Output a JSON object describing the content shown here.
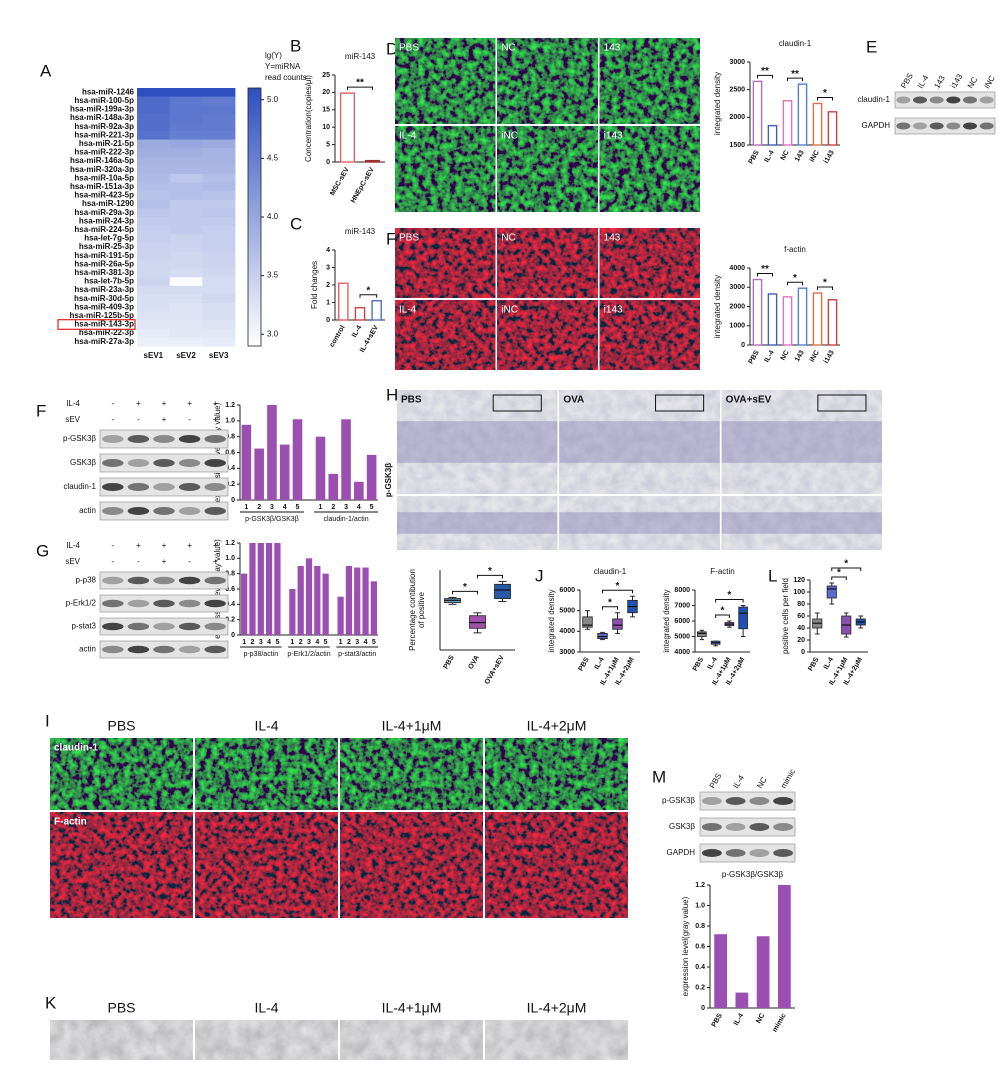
{
  "letters": [
    "A",
    "B",
    "C",
    "D",
    "E",
    "F",
    "F",
    "G",
    "H",
    "J",
    "L",
    "I",
    "M",
    "K"
  ],
  "chart_data": [
    {
      "type": "heatmap",
      "rows": [
        "hsa-miR-1246",
        "hsa-miR-100-5p",
        "hsa-miR-199a-3p",
        "hsa-miR-148a-3p",
        "hsa-miR-92a-3p",
        "hsa-miR-221-3p",
        "hsa-miR-21-5p",
        "hsa-miR-222-3p",
        "hsa-miR-146a-5p",
        "hsa-miR-320a-3p",
        "hsa-miR-10a-5p",
        "hsa-miR-151a-3p",
        "hsa-miR-423-5p",
        "hsa-miR-1290",
        "hsa-miR-29a-3p",
        "hsa-miR-24-3p",
        "hsa-miR-224-5p",
        "hsa-let-7g-5p",
        "hsa-miR-25-3p",
        "hsa-miR-191-5p",
        "hsa-miR-26a-5p",
        "hsa-miR-381-3p",
        "hsa-let-7b-5p",
        "hsa-miR-23a-3p",
        "hsa-miR-30d-5p",
        "hsa-miR-409-3p",
        "hsa-miR-125b-5p",
        "hsa-miR-143-3p",
        "hsa-miR-22-3p",
        "hsa-miR-27a-3p"
      ],
      "columns": [
        "sEV1",
        "sEV2",
        "sEV3"
      ],
      "values": [
        [
          5.1,
          5.1,
          5.1
        ],
        [
          4.75,
          4.6,
          4.55
        ],
        [
          4.75,
          4.6,
          4.6
        ],
        [
          4.7,
          4.6,
          4.55
        ],
        [
          4.7,
          4.55,
          4.55
        ],
        [
          4.65,
          4.5,
          4.5
        ],
        [
          3.95,
          4.0,
          3.95
        ],
        [
          3.9,
          3.9,
          3.85
        ],
        [
          3.85,
          3.85,
          3.85
        ],
        [
          3.8,
          3.8,
          3.8
        ],
        [
          3.75,
          3.6,
          3.7
        ],
        [
          3.7,
          3.7,
          3.75
        ],
        [
          3.65,
          3.7,
          3.65
        ],
        [
          3.7,
          3.55,
          3.55
        ],
        [
          3.6,
          3.55,
          3.6
        ],
        [
          3.55,
          3.55,
          3.55
        ],
        [
          3.5,
          3.55,
          3.5
        ],
        [
          3.5,
          3.45,
          3.5
        ],
        [
          3.45,
          3.45,
          3.5
        ],
        [
          3.45,
          3.4,
          3.45
        ],
        [
          3.4,
          3.4,
          3.45
        ],
        [
          3.4,
          3.35,
          3.4
        ],
        [
          3.45,
          2.95,
          3.35
        ],
        [
          3.35,
          3.35,
          3.35
        ],
        [
          3.3,
          3.3,
          3.4
        ],
        [
          3.3,
          3.25,
          3.3
        ],
        [
          3.25,
          3.25,
          3.3
        ],
        [
          3.2,
          3.2,
          3.25
        ],
        [
          3.15,
          3.2,
          3.2
        ],
        [
          3.1,
          3.1,
          3.15
        ]
      ],
      "zlim": [
        2.9,
        5.1
      ],
      "zticks": [
        {
          "value": 3,
          "label": "3.0"
        },
        3.5,
        {
          "value": 4,
          "label": "4.0"
        },
        4.5,
        {
          "value": 5,
          "label": "5.0"
        }
      ],
      "colormap": [
        "#ffffff",
        "#2e4fbf"
      ],
      "legend_title": [
        "lg(Y)",
        "Y=miRNA",
        "read counts"
      ],
      "highlight": "hsa-miR-143-3p",
      "highlight_color": "#e02020"
    },
    {
      "type": "bar",
      "title": "miR-143",
      "ylabel": "Concentration(copies/μl)",
      "categories": [
        "MSC-sEV",
        "HNEpC-sEV"
      ],
      "values": [
        19.8,
        0.4
      ],
      "colors": [
        "#e06060",
        "#a03030"
      ],
      "bar_style": "outline",
      "ylim": [
        0,
        25
      ],
      "yticks": [
        0,
        5,
        10,
        15,
        20,
        25
      ],
      "annotations": [
        {
          "text": "**",
          "between": [
            "MSC-sEV",
            "HNEpC-sEV"
          ]
        }
      ]
    },
    {
      "type": "bar",
      "title": "miR-143",
      "ylabel": "Fold changes",
      "categories": [
        "control",
        "IL-4",
        "IL-4+sEV"
      ],
      "values": [
        2.1,
        0.7,
        1.1
      ],
      "colors": [
        "#e06060",
        "#d04040",
        "#5070c0"
      ],
      "bar_style": "outline",
      "ylim": [
        0,
        4
      ],
      "yticks": [
        0,
        1,
        2,
        3,
        4
      ],
      "annotations": [
        {
          "text": "*",
          "between": [
            "IL-4",
            "IL-4+sEV"
          ]
        }
      ]
    },
    {
      "type": "bar",
      "title": "claudin-1",
      "ylabel": "integrated density",
      "categories": [
        "PBS",
        "IL-4",
        "NC",
        "143",
        "iNC",
        "i143"
      ],
      "values": [
        2650,
        1850,
        2300,
        2600,
        2250,
        2100
      ],
      "colors": [
        "#b070c0",
        "#4060c0",
        "#e070c0",
        "#5080d0",
        "#e07050",
        "#d04040"
      ],
      "bar_style": "outline",
      "ylim": [
        1500,
        3000
      ],
      "yticks": [
        1500,
        2000,
        2500,
        3000
      ],
      "annotations": [
        {
          "text": "**",
          "between": [
            "PBS",
            "IL-4"
          ]
        },
        {
          "text": "**",
          "between": [
            "NC",
            "143"
          ]
        },
        {
          "text": "*",
          "between": [
            "iNC",
            "i143"
          ]
        }
      ]
    },
    {
      "type": "bar",
      "title": "f-actin",
      "ylabel": "integrated density",
      "categories": [
        "PBS",
        "IL-4",
        "NC",
        "143",
        "iNC",
        "i143"
      ],
      "values": [
        3400,
        2650,
        2500,
        2950,
        2700,
        2350
      ],
      "colors": [
        "#b070c0",
        "#4060c0",
        "#e070c0",
        "#5080d0",
        "#e07050",
        "#d04040"
      ],
      "bar_style": "outline",
      "ylim": [
        0,
        4000
      ],
      "yticks": [
        0,
        1000,
        2000,
        3000,
        4000
      ],
      "annotations": [
        {
          "text": "**",
          "between": [
            "PBS",
            "IL-4"
          ]
        },
        {
          "text": "*",
          "between": [
            "NC",
            "143"
          ]
        },
        {
          "text": "*",
          "between": [
            "iNC",
            "i143"
          ]
        }
      ]
    },
    {
      "type": "bar",
      "ylabel": "expression level(gray value)",
      "categories": [
        "1",
        "2",
        "3",
        "4",
        "5",
        "1",
        "2",
        "3",
        "4",
        "5"
      ],
      "groups": [
        "p-GSK3β/GSK3β",
        "claudin-1/actin"
      ],
      "values": [
        0.95,
        0.65,
        1.2,
        0.7,
        1.02,
        0.8,
        0.33,
        1.02,
        0.23,
        0.57
      ],
      "color": "#9b4fb0",
      "ylim": [
        0,
        1.2
      ],
      "yticks": [
        0,
        0.2,
        0.4,
        0.6,
        0.8,
        {
          "value": 1,
          "label": "1.0"
        },
        1.2
      ]
    },
    {
      "type": "bar",
      "ylabel": "expression level(gray value)",
      "categories": [
        "1",
        "2",
        "3",
        "4",
        "5",
        "1",
        "2",
        "3",
        "4",
        "5",
        "1",
        "2",
        "3",
        "4",
        "5"
      ],
      "groups": [
        "p-p38/actin",
        "p-Erk1/2/actin",
        "p-stat3/actin"
      ],
      "values": [
        0.8,
        1.2,
        1.2,
        1.2,
        1.2,
        0.6,
        0.9,
        1.0,
        0.9,
        0.8,
        0.5,
        0.9,
        0.88,
        0.88,
        0.7
      ],
      "color": "#9b4fb0",
      "ylim": [
        0,
        1.2
      ],
      "yticks": [
        0,
        0.2,
        0.4,
        0.6,
        0.8,
        {
          "value": 1,
          "label": "1.0"
        },
        1.2
      ]
    },
    {
      "type": "box",
      "ylabel": [
        "Percentage contibution",
        "of positive"
      ],
      "categories": [
        "PBS",
        "OVA",
        "OVA+sEV"
      ],
      "values": [
        [
          8,
          8.3,
          8.7,
          9,
          9.2
        ],
        [
          3,
          3.8,
          4.8,
          6,
          6.5
        ],
        [
          8.5,
          9,
          10.5,
          11.5,
          12
        ]
      ],
      "colors": [
        "#6aa0c8",
        "#a050a8",
        "#2858a8"
      ],
      "ylim": [
        0,
        14
      ],
      "annotations": [
        {
          "text": "*",
          "between": [
            "PBS",
            "OVA"
          ]
        },
        {
          "text": "*",
          "between": [
            "OVA",
            "OVA+sEV"
          ]
        }
      ]
    },
    {
      "type": "box",
      "title": "claudin-1",
      "ylabel": "integrated density",
      "categories": [
        "PBS",
        "IL-4",
        "IL-4+1μM",
        "IL-4+2μM"
      ],
      "values": [
        [
          4100,
          4200,
          4300,
          4700,
          5000
        ],
        [
          3600,
          3650,
          3750,
          3900,
          3950
        ],
        [
          3900,
          4100,
          4300,
          4600,
          4900
        ],
        [
          4700,
          4900,
          5200,
          5500,
          5700
        ]
      ],
      "colors": [
        "#888888",
        "#5a6ad0",
        "#8a50b0",
        "#2050b0"
      ],
      "ylim": [
        3000,
        6000
      ],
      "yticks": [
        3000,
        4000,
        5000,
        6000
      ],
      "annotations": [
        {
          "text": "*",
          "between": [
            "IL-4",
            "IL-4+1μM"
          ]
        },
        {
          "text": "*",
          "between": [
            "IL-4",
            "IL-4+2μM"
          ]
        }
      ]
    },
    {
      "type": "box",
      "title": "F-actin",
      "ylabel": "integrated density",
      "categories": [
        "PBS",
        "IL-4",
        "IL-4+1μM",
        "IL-4+2μM"
      ],
      "values": [
        [
          4800,
          5000,
          5200,
          5300,
          5400
        ],
        [
          4400,
          4500,
          4600,
          4700,
          4700
        ],
        [
          5600,
          5700,
          5800,
          5900,
          6000
        ],
        [
          5000,
          5500,
          6500,
          6900,
          7000
        ]
      ],
      "colors": [
        "#888888",
        "#5a6ad0",
        "#8a50b0",
        "#2050b0"
      ],
      "ylim": [
        4000,
        8000
      ],
      "yticks": [
        4000,
        5000,
        6000,
        7000,
        8000
      ],
      "annotations": [
        {
          "text": "*",
          "between": [
            "IL-4",
            "IL-4+1μM"
          ]
        },
        {
          "text": "*",
          "between": [
            "IL-4",
            "IL-4+2μM"
          ]
        }
      ]
    },
    {
      "type": "box",
      "ylabel": "positive cells per field",
      "categories": [
        "PBS",
        "IL-4",
        "IL-4+1μM",
        "IL-4+2μM"
      ],
      "values": [
        [
          30,
          40,
          48,
          55,
          65
        ],
        [
          80,
          90,
          105,
          110,
          115
        ],
        [
          25,
          30,
          45,
          60,
          65
        ],
        [
          40,
          45,
          50,
          55,
          60
        ]
      ],
      "colors": [
        "#888888",
        "#5a6ad0",
        "#8a50b0",
        "#2050b0"
      ],
      "ylim": [
        0,
        120
      ],
      "yticks": [
        0,
        20,
        40,
        60,
        80,
        100,
        120
      ],
      "annotations": [
        {
          "text": "*",
          "between": [
            "IL-4",
            "IL-4+1μM"
          ]
        },
        {
          "text": "*",
          "between": [
            "IL-4",
            "IL-4+2μM"
          ]
        }
      ]
    },
    {
      "type": "bar",
      "title": "p-GSK3β/GSK3β",
      "ylabel": "expression level(gray value)",
      "categories": [
        "PBS",
        "IL-4",
        "NC",
        "mimic"
      ],
      "values": [
        0.72,
        0.15,
        0.7,
        1.2
      ],
      "color": "#9b4fb0",
      "ylim": [
        0,
        1.2
      ],
      "yticks": [
        0,
        0.2,
        0.4,
        0.6,
        0.8,
        {
          "value": 1,
          "label": "1.0"
        },
        1.2
      ]
    }
  ],
  "image_panels": [
    {
      "labels": [
        "PBS",
        "NC",
        "143",
        "IL-4",
        "iNC",
        "i143"
      ]
    },
    {
      "labels": [
        "PBS",
        "NC",
        "143",
        "IL-4",
        "iNC",
        "i143"
      ]
    },
    {
      "labels": [
        "PBS",
        "OVA",
        "OVA+sEV"
      ],
      "side_label": "p-GSK3β"
    },
    {
      "labels": [
        "PBS",
        "IL-4",
        "IL-4+1μM",
        "IL-4+2μM"
      ],
      "row_labels": [
        "claudin-1",
        "F-actin"
      ]
    },
    {
      "labels": [
        "PBS",
        "IL-4",
        "IL-4+1μM",
        "IL-4+2μM"
      ]
    }
  ],
  "blots": [
    {
      "lanes": [
        "PBS",
        "IL-4",
        "143",
        "i143",
        "NC",
        "iNC"
      ],
      "rows": [
        "claudin-1",
        "GAPDH"
      ]
    },
    {
      "treatments": [
        {
          "name": "IL-4",
          "signs": [
            "-",
            "+",
            "+",
            "+",
            "+"
          ]
        },
        {
          "name": "sEV",
          "signs": [
            "-",
            "-",
            "+",
            "-",
            "+"
          ]
        }
      ],
      "rows": [
        "p-GSK3β",
        "GSK3β",
        "claudin-1",
        "actin"
      ]
    },
    {
      "treatments": [
        {
          "name": "IL-4",
          "signs": [
            "-",
            "+",
            "+",
            "+",
            "+"
          ]
        },
        {
          "name": "sEV",
          "signs": [
            "-",
            "-",
            "+",
            "-",
            "+"
          ]
        }
      ],
      "rows": [
        "p-p38",
        "p-Erk1/2",
        "p-stat3",
        "actin"
      ]
    },
    {
      "lanes": [
        "PBS",
        "IL-4",
        "NC",
        "mimic"
      ],
      "rows": [
        "p-GSK3β",
        "GSK3β",
        "GAPDH"
      ]
    }
  ]
}
